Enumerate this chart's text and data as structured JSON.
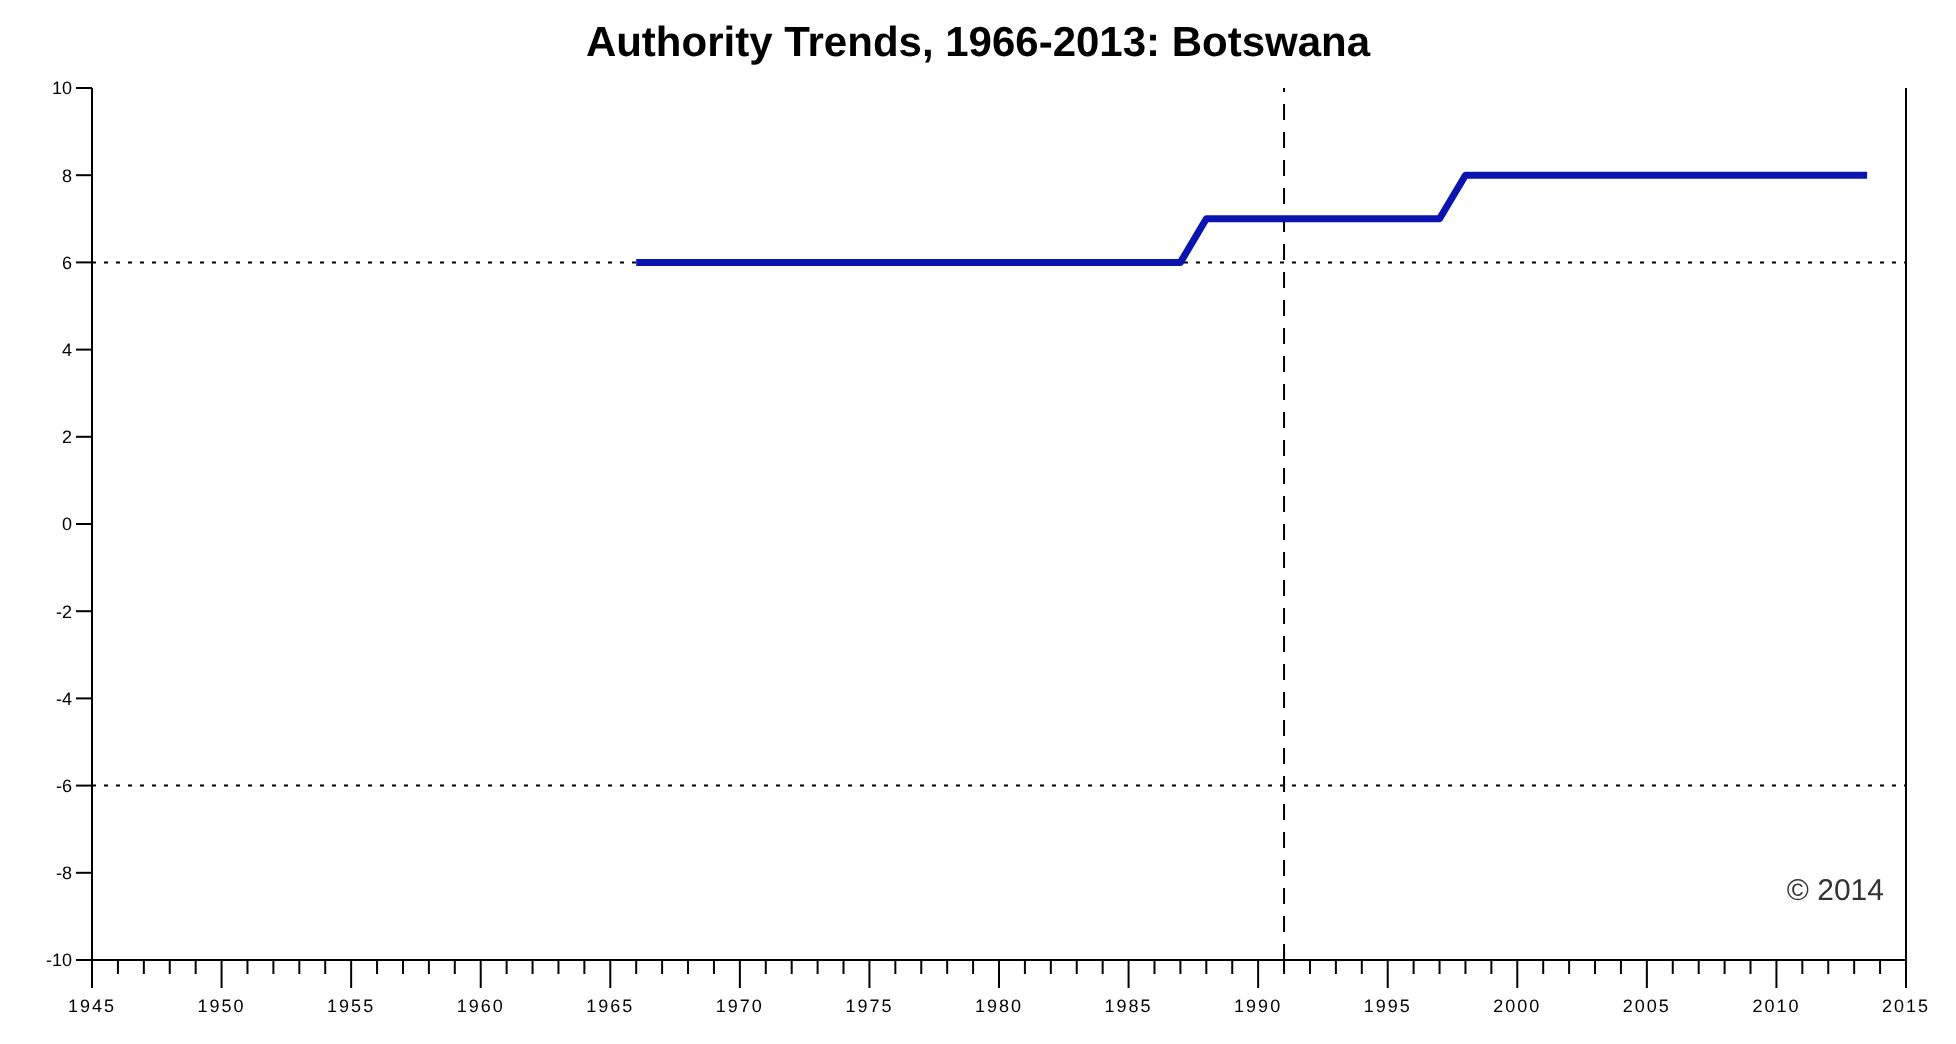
{
  "chart_data": {
    "type": "line",
    "title": "Authority Trends, 1966-2013: Botswana",
    "series": [
      {
        "color": "#0c14b0",
        "x": [
          1966,
          1987,
          1988,
          1997,
          1998,
          2013.5
        ],
        "values": [
          6,
          6,
          7,
          7,
          8,
          8
        ]
      }
    ],
    "xlim": [
      1945,
      2015
    ],
    "xticks": [
      1945,
      {
        "value": 1946,
        "label": null
      },
      {
        "value": 1947,
        "label": null
      },
      {
        "value": 1948,
        "label": null
      },
      {
        "value": 1949,
        "label": null
      },
      1950,
      {
        "value": 1951,
        "label": null
      },
      {
        "value": 1952,
        "label": null
      },
      {
        "value": 1953,
        "label": null
      },
      {
        "value": 1954,
        "label": null
      },
      1955,
      {
        "value": 1956,
        "label": null
      },
      {
        "value": 1957,
        "label": null
      },
      {
        "value": 1958,
        "label": null
      },
      {
        "value": 1959,
        "label": null
      },
      1960,
      {
        "value": 1961,
        "label": null
      },
      {
        "value": 1962,
        "label": null
      },
      {
        "value": 1963,
        "label": null
      },
      {
        "value": 1964,
        "label": null
      },
      1965,
      {
        "value": 1966,
        "label": null
      },
      {
        "value": 1967,
        "label": null
      },
      {
        "value": 1968,
        "label": null
      },
      {
        "value": 1969,
        "label": null
      },
      1970,
      {
        "value": 1971,
        "label": null
      },
      {
        "value": 1972,
        "label": null
      },
      {
        "value": 1973,
        "label": null
      },
      {
        "value": 1974,
        "label": null
      },
      1975,
      {
        "value": 1976,
        "label": null
      },
      {
        "value": 1977,
        "label": null
      },
      {
        "value": 1978,
        "label": null
      },
      {
        "value": 1979,
        "label": null
      },
      1980,
      {
        "value": 1981,
        "label": null
      },
      {
        "value": 1982,
        "label": null
      },
      {
        "value": 1983,
        "label": null
      },
      {
        "value": 1984,
        "label": null
      },
      1985,
      {
        "value": 1986,
        "label": null
      },
      {
        "value": 1987,
        "label": null
      },
      {
        "value": 1988,
        "label": null
      },
      {
        "value": 1989,
        "label": null
      },
      1990,
      {
        "value": 1991,
        "label": null
      },
      {
        "value": 1992,
        "label": null
      },
      {
        "value": 1993,
        "label": null
      },
      {
        "value": 1994,
        "label": null
      },
      1995,
      {
        "value": 1996,
        "label": null
      },
      {
        "value": 1997,
        "label": null
      },
      {
        "value": 1998,
        "label": null
      },
      {
        "value": 1999,
        "label": null
      },
      2000,
      {
        "value": 2001,
        "label": null
      },
      {
        "value": 2002,
        "label": null
      },
      {
        "value": 2003,
        "label": null
      },
      {
        "value": 2004,
        "label": null
      },
      2005,
      {
        "value": 2006,
        "label": null
      },
      {
        "value": 2007,
        "label": null
      },
      {
        "value": 2008,
        "label": null
      },
      {
        "value": 2009,
        "label": null
      },
      2010,
      {
        "value": 2011,
        "label": null
      },
      {
        "value": 2012,
        "label": null
      },
      {
        "value": 2013,
        "label": null
      },
      {
        "value": 2014,
        "label": null
      },
      2015
    ],
    "ylim": [
      -10,
      10
    ],
    "yticks": [
      -10,
      -8,
      -6,
      -4,
      -2,
      0,
      2,
      4,
      6,
      8,
      10
    ],
    "ref_lines": [
      {
        "axis": "y",
        "value": 6,
        "line_style": "dotted",
        "color": "#000000"
      },
      {
        "axis": "y",
        "value": -6,
        "line_style": "dotted",
        "color": "#000000"
      },
      {
        "axis": "x",
        "value": 1991,
        "line_style": "dashed",
        "color": "#000000"
      }
    ],
    "annotations": [
      "© 2014"
    ]
  }
}
